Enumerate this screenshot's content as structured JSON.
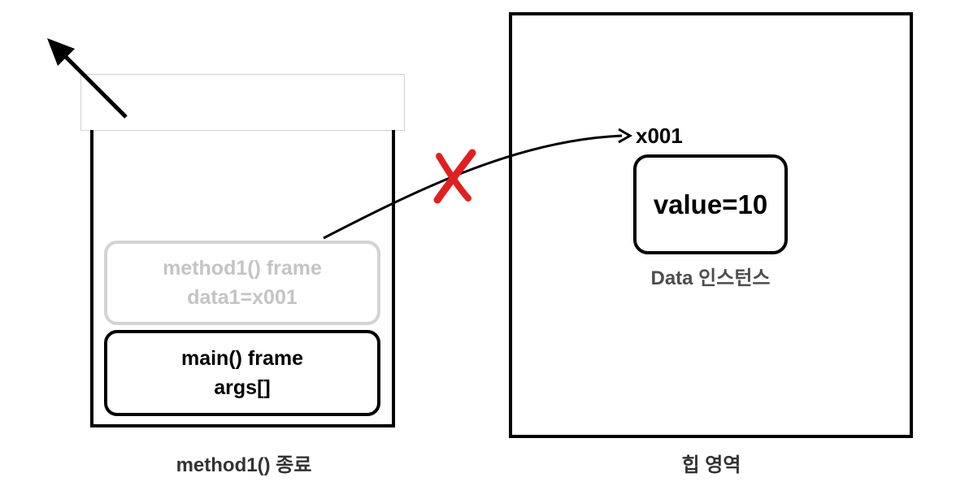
{
  "stack": {
    "frames": [
      {
        "title": "method1() frame",
        "detail": "data1=x001"
      },
      {
        "title": "main() frame",
        "detail": "args[]"
      }
    ],
    "caption": "method1() 종료"
  },
  "heap": {
    "address": "x001",
    "instance_value": "value=10",
    "instance_caption": "Data 인스턴스",
    "caption": "힙 영역"
  },
  "colors": {
    "border": "#000000",
    "removed_frame": "#d3d3d3",
    "removed_text": "#c4c4c4",
    "cross_mark": "#e02020"
  }
}
